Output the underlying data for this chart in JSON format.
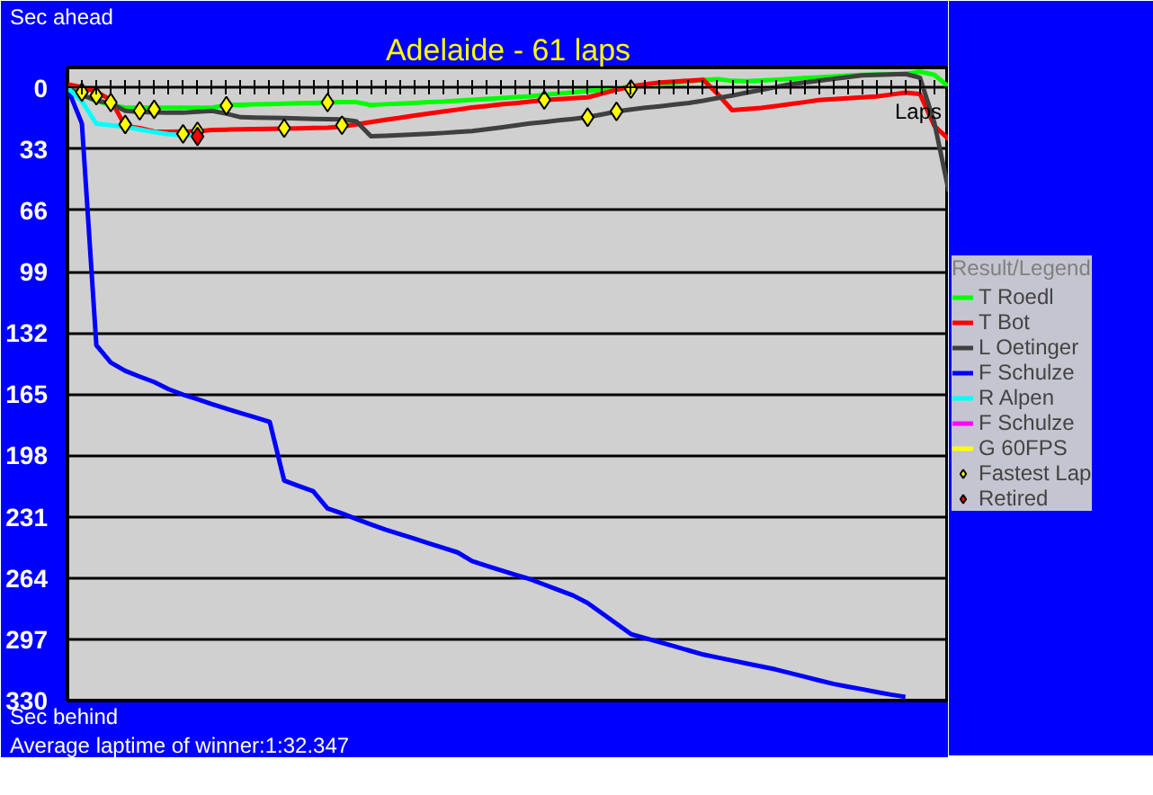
{
  "chart_data": {
    "type": "line",
    "title": "Adelaide - 61 laps",
    "ylabel": "Sec ahead",
    "xlabel": "Laps",
    "legend_title": "Result/Legend",
    "annotations": [
      "Sec behind",
      "Average laptime of winner:1:32.347"
    ],
    "categories": [
      null,
      null,
      null,
      null,
      null,
      null,
      null,
      null,
      null,
      null,
      null,
      null,
      null,
      null,
      null,
      null,
      null,
      null,
      null,
      null,
      null,
      null,
      null,
      null,
      null,
      null,
      null,
      null,
      null,
      null,
      null,
      null,
      null,
      null,
      null,
      null,
      null,
      null,
      null,
      null,
      null,
      null,
      null,
      null,
      null,
      null,
      null,
      null,
      null,
      null,
      null,
      null,
      null,
      null,
      null,
      null,
      null,
      null,
      null,
      null,
      null,
      null
    ],
    "ylim": [
      330,
      -11
    ],
    "yticks": [
      0,
      33,
      66,
      99,
      132,
      165,
      198,
      231,
      264,
      297,
      330
    ],
    "tick_labels": "y",
    "grid": "y",
    "legend": "right",
    "series": [
      {
        "name": "T Roedl",
        "color": "#00ff00",
        "marker": "none",
        "values": [
          0,
          3.8,
          7.1,
          9.2,
          10.7,
          10.7,
          10.7,
          10.7,
          10.7,
          10.7,
          10.7,
          9.3,
          9.1,
          8.9,
          8.7,
          8.5,
          8.3,
          8.1,
          7.9,
          7.6,
          7.7,
          9.2,
          8.8,
          8.5,
          8.1,
          7.7,
          7.4,
          6.9,
          6.4,
          5.9,
          5.5,
          5.0,
          4.5,
          3.8,
          3.1,
          2.4,
          1.7,
          0.9,
          0.1,
          -0.7,
          -1.4,
          -2.1,
          -2.8,
          -3.5,
          -4.2,
          -4.7,
          -3.8,
          -3.6,
          -4.0,
          -4.4,
          -4.8,
          -5.3,
          -5.7,
          -6.2,
          -6.7,
          -7.0,
          -7.2,
          -7.4,
          -7.6,
          -8.7,
          -7.0,
          -0.6
        ]
      },
      {
        "name": "T Bot",
        "color": "#ff0000",
        "marker": "none",
        "values": [
          -2,
          -0.4,
          2.1,
          6.5,
          20.6,
          21.7,
          23.5,
          23.6,
          23.5,
          23.4,
          22.7,
          22.5,
          22.3,
          22.2,
          22.1,
          21.9,
          21.8,
          21.6,
          21.5,
          20.9,
          19.6,
          18.4,
          17.2,
          16.1,
          14.9,
          13.8,
          12.7,
          11.7,
          10.6,
          9.8,
          8.9,
          8.2,
          7.4,
          6.6,
          6.1,
          5.6,
          5.1,
          3.1,
          1.0,
          -0.8,
          -1.9,
          -2.9,
          -3.4,
          -3.9,
          -4.4,
          3.3,
          12.0,
          11.4,
          10.8,
          9.8,
          8.7,
          7.7,
          6.6,
          6.1,
          5.6,
          5.1,
          4.6,
          3.6,
          2.6,
          3.3,
          20.5,
          27.7
        ]
      },
      {
        "name": "L Oetinger",
        "color": "#404040",
        "marker": "none",
        "values": [
          0,
          3.8,
          6.8,
          8.4,
          12.4,
          13.0,
          13.2,
          13.4,
          13.4,
          12.9,
          12.4,
          13.9,
          15.8,
          16.0,
          16.1,
          16.3,
          16.5,
          16.7,
          16.9,
          17.0,
          18.1,
          26.1,
          25.8,
          25.4,
          25.1,
          24.7,
          24.3,
          23.8,
          23.3,
          22.3,
          21.3,
          20.2,
          19.2,
          18.4,
          17.5,
          16.7,
          15.8,
          14.3,
          12.7,
          11.6,
          10.7,
          9.9,
          9.0,
          8.1,
          6.9,
          5.5,
          4.1,
          2.6,
          1.1,
          -0.4,
          -1.9,
          -2.9,
          -3.9,
          -4.8,
          -5.8,
          -6.8,
          -7.0,
          -7.2,
          -7.5,
          -5.5,
          18.8,
          55.8
        ]
      },
      {
        "name": "F Schulze",
        "color": "#0000ff",
        "marker": "none",
        "values": [
          0,
          19.2,
          138.6,
          147.9,
          152.4,
          155.5,
          158.4,
          162.3,
          165.2,
          167.7,
          170.3,
          172.8,
          175.2,
          177.5,
          179.9,
          211.5,
          214.4,
          217.2,
          226.5,
          229.2,
          232.2,
          235.1,
          237.9,
          240.3,
          242.8,
          245.3,
          247.7,
          250.2,
          254.9,
          257.4,
          259.8,
          262.2,
          264.6,
          267.5,
          270.5,
          273.4,
          277.4,
          283.0,
          288.6,
          294.2,
          296.4,
          298.6,
          300.8,
          303.0,
          305.2,
          306.8,
          308.4,
          310.0,
          311.6,
          313.2,
          315.2,
          317.1,
          319.1,
          321.0,
          322.5,
          323.9,
          325.4,
          326.8,
          328,
          null,
          null,
          null
        ]
      },
      {
        "name": "R Alpen",
        "color": "#00ffff",
        "marker": "none",
        "values": [
          0,
          7.2,
          19.3,
          20.1,
          21.0,
          22.4,
          23.8,
          25.0,
          25.4,
          25.4,
          null,
          null,
          null,
          null,
          null,
          null,
          null,
          null,
          null,
          null,
          null,
          null,
          null,
          null,
          null,
          null,
          null,
          null,
          null,
          null,
          null,
          null,
          null,
          null,
          null,
          null,
          null,
          null,
          null,
          null,
          null,
          null,
          null,
          null,
          null,
          null,
          null,
          null,
          null,
          null,
          null,
          null,
          null,
          null,
          null,
          null,
          null,
          null,
          null,
          null,
          null,
          null
        ]
      },
      {
        "name": "F Schulze",
        "color": "#ff00ff",
        "marker": "none",
        "values": [
          null,
          null,
          null,
          null,
          null,
          null,
          null,
          null,
          null,
          null,
          null,
          null,
          null,
          null,
          null,
          null,
          null,
          null,
          null,
          null,
          null,
          null,
          null,
          null,
          null,
          null,
          null,
          null,
          null,
          null,
          null,
          null,
          null,
          null,
          null,
          null,
          null,
          null,
          null,
          null,
          null,
          null,
          null,
          null,
          null,
          null,
          null,
          null,
          null,
          null,
          null,
          null,
          null,
          null,
          null,
          null,
          null,
          null,
          null,
          null,
          null,
          null
        ]
      },
      {
        "name": "G 60FPS",
        "color": "#ffff00",
        "marker": "none",
        "values": [
          null,
          null,
          null,
          null,
          null,
          null,
          null,
          null,
          null,
          null,
          null,
          null,
          null,
          null,
          null,
          null,
          null,
          null,
          null,
          null,
          null,
          null,
          null,
          null,
          null,
          null,
          null,
          null,
          null,
          null,
          null,
          null,
          null,
          null,
          null,
          null,
          null,
          null,
          null,
          null,
          null,
          null,
          null,
          null,
          null,
          null,
          null,
          null,
          null,
          null,
          null,
          null,
          null,
          null,
          null,
          null,
          null,
          null,
          null,
          null,
          null,
          null
        ]
      },
      {
        "name": "Fastest Lap",
        "color": "#ffff00",
        "type": "scatter",
        "marker": "diamond",
        "values": [
          null,
          2.3,
          4.2,
          7.9,
          19.7,
          12.4,
          11.6,
          null,
          24.8,
          23.4,
          null,
          9.6,
          null,
          null,
          null,
          21.7,
          null,
          null,
          7.9,
          20.1,
          null,
          null,
          null,
          null,
          null,
          null,
          null,
          null,
          null,
          null,
          null,
          null,
          null,
          6.5,
          null,
          null,
          15.8,
          null,
          12.7,
          0.6,
          null,
          null,
          null,
          null,
          null,
          null,
          null,
          null,
          null,
          null,
          null,
          null,
          null,
          null,
          null,
          null,
          null,
          null,
          null,
          null,
          null,
          null
        ]
      },
      {
        "name": "Retired",
        "color": "#ff0000",
        "type": "scatter",
        "marker": "diamond",
        "values": [
          null,
          null,
          null,
          null,
          null,
          null,
          null,
          null,
          null,
          26.2,
          null,
          null,
          null,
          null,
          null,
          null,
          null,
          null,
          null,
          null,
          null,
          null,
          null,
          null,
          null,
          null,
          null,
          null,
          null,
          null,
          null,
          null,
          null,
          null,
          null,
          null,
          null,
          null,
          null,
          null,
          null,
          null,
          null,
          null,
          null,
          null,
          null,
          null,
          null,
          null,
          null,
          null,
          null,
          null,
          null,
          null,
          null,
          null,
          null,
          null,
          null,
          null
        ]
      }
    ]
  }
}
